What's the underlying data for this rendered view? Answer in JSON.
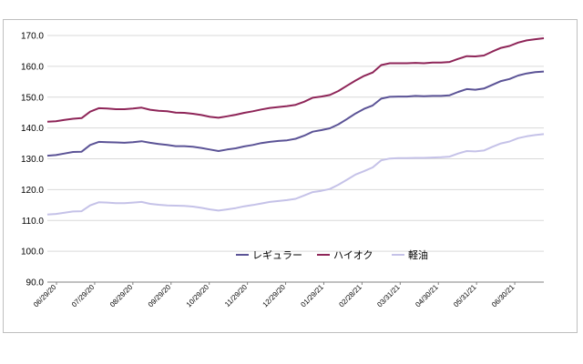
{
  "chart_data": {
    "type": "line",
    "title": "",
    "xlabel": "",
    "ylabel": "",
    "ylim": [
      90,
      170
    ],
    "yticks": [
      "90.0",
      "100.0",
      "110.0",
      "120.0",
      "130.0",
      "140.0",
      "150.0",
      "160.0",
      "170.0"
    ],
    "grid": true,
    "legend_position": "bottom-center",
    "x_tick_labels": [
      "06/29/20",
      "07/29/20",
      "08/29/20",
      "09/29/20",
      "10/29/20",
      "11/29/20",
      "12/29/20",
      "01/29/21",
      "02/28/21",
      "03/31/21",
      "04/30/21",
      "05/31/21",
      "06/30/21"
    ],
    "series": [
      {
        "name": "レギュラー",
        "color": "#5b5396",
        "values": [
          131.0,
          131.2,
          131.7,
          132.2,
          132.3,
          134.5,
          135.5,
          135.4,
          135.3,
          135.2,
          135.4,
          135.7,
          135.2,
          134.8,
          134.5,
          134.1,
          134.1,
          133.9,
          133.5,
          133.0,
          132.5,
          133.0,
          133.4,
          134.0,
          134.5,
          135.1,
          135.5,
          135.8,
          136.0,
          136.5,
          137.5,
          138.8,
          139.3,
          139.9,
          141.2,
          142.9,
          144.7,
          146.2,
          147.3,
          149.5,
          150.1,
          150.2,
          150.2,
          150.4,
          150.3,
          150.4,
          150.4,
          150.6,
          151.7,
          152.6,
          152.4,
          152.8,
          154.0,
          155.2,
          155.9,
          157.0,
          157.7,
          158.1,
          158.3
        ]
      },
      {
        "name": "ハイオク",
        "color": "#8e2558",
        "values": [
          142.0,
          142.2,
          142.6,
          143.0,
          143.2,
          145.3,
          146.4,
          146.3,
          146.1,
          146.1,
          146.3,
          146.6,
          145.9,
          145.6,
          145.4,
          145.0,
          144.9,
          144.6,
          144.2,
          143.6,
          143.3,
          143.8,
          144.3,
          144.9,
          145.4,
          146.0,
          146.5,
          146.8,
          147.1,
          147.5,
          148.5,
          149.8,
          150.2,
          150.7,
          152.0,
          153.7,
          155.4,
          156.9,
          158.0,
          160.4,
          161.0,
          161.0,
          161.0,
          161.1,
          161.0,
          161.2,
          161.2,
          161.4,
          162.4,
          163.3,
          163.2,
          163.5,
          164.8,
          166.0,
          166.6,
          167.7,
          168.4,
          168.8,
          169.1
        ]
      },
      {
        "name": "軽油",
        "color": "#c5c2e8",
        "values": [
          111.9,
          112.1,
          112.5,
          112.9,
          113.0,
          114.9,
          115.9,
          115.8,
          115.6,
          115.6,
          115.8,
          116.0,
          115.4,
          115.1,
          114.9,
          114.8,
          114.7,
          114.5,
          114.1,
          113.6,
          113.2,
          113.6,
          114.0,
          114.6,
          115.0,
          115.5,
          116.0,
          116.3,
          116.6,
          117.0,
          118.1,
          119.2,
          119.6,
          120.2,
          121.6,
          123.2,
          124.9,
          126.0,
          127.2,
          129.5,
          130.1,
          130.2,
          130.2,
          130.3,
          130.3,
          130.4,
          130.5,
          130.7,
          131.7,
          132.5,
          132.4,
          132.7,
          133.9,
          135.0,
          135.6,
          136.7,
          137.3,
          137.7,
          138.0
        ]
      }
    ],
    "gridline_color": "#d9d9d9"
  }
}
